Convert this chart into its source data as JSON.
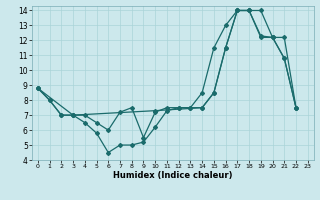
{
  "xlabel": "Humidex (Indice chaleur)",
  "background_color": "#cce8ec",
  "line_color": "#1a6b6b",
  "xlim": [
    -0.5,
    23.5
  ],
  "ylim": [
    4,
    14.3
  ],
  "xticks": [
    0,
    1,
    2,
    3,
    4,
    5,
    6,
    7,
    8,
    9,
    10,
    11,
    12,
    13,
    14,
    15,
    16,
    17,
    18,
    19,
    20,
    21,
    22,
    23
  ],
  "yticks": [
    4,
    5,
    6,
    7,
    8,
    9,
    10,
    11,
    12,
    13,
    14
  ],
  "line1_x": [
    0,
    1,
    2,
    3,
    4,
    5,
    6,
    7,
    8,
    9,
    10,
    11,
    12,
    13,
    14,
    15,
    16,
    17,
    18,
    19,
    20,
    21,
    22
  ],
  "line1_y": [
    8.8,
    8.0,
    7.0,
    7.0,
    7.0,
    6.5,
    6.0,
    7.2,
    7.5,
    5.5,
    7.2,
    7.5,
    7.5,
    7.5,
    8.5,
    11.5,
    13.0,
    14.0,
    14.0,
    14.0,
    12.2,
    12.2,
    7.5
  ],
  "line2_x": [
    0,
    1,
    2,
    3,
    4,
    5,
    6,
    7,
    8,
    9,
    10,
    11,
    12,
    13,
    14,
    15,
    16,
    17,
    18,
    19,
    20,
    21,
    22
  ],
  "line2_y": [
    8.8,
    8.0,
    7.0,
    7.0,
    6.5,
    5.8,
    4.5,
    5.0,
    5.0,
    5.2,
    6.2,
    7.3,
    7.5,
    7.5,
    7.5,
    8.5,
    11.5,
    14.0,
    14.0,
    12.2,
    12.2,
    10.8,
    7.5
  ],
  "line3_x": [
    0,
    3,
    10,
    14,
    15,
    16,
    17,
    18,
    19,
    20,
    21,
    22
  ],
  "line3_y": [
    8.8,
    7.0,
    7.3,
    7.5,
    8.5,
    11.5,
    14.0,
    14.0,
    12.3,
    12.2,
    10.8,
    7.5
  ]
}
